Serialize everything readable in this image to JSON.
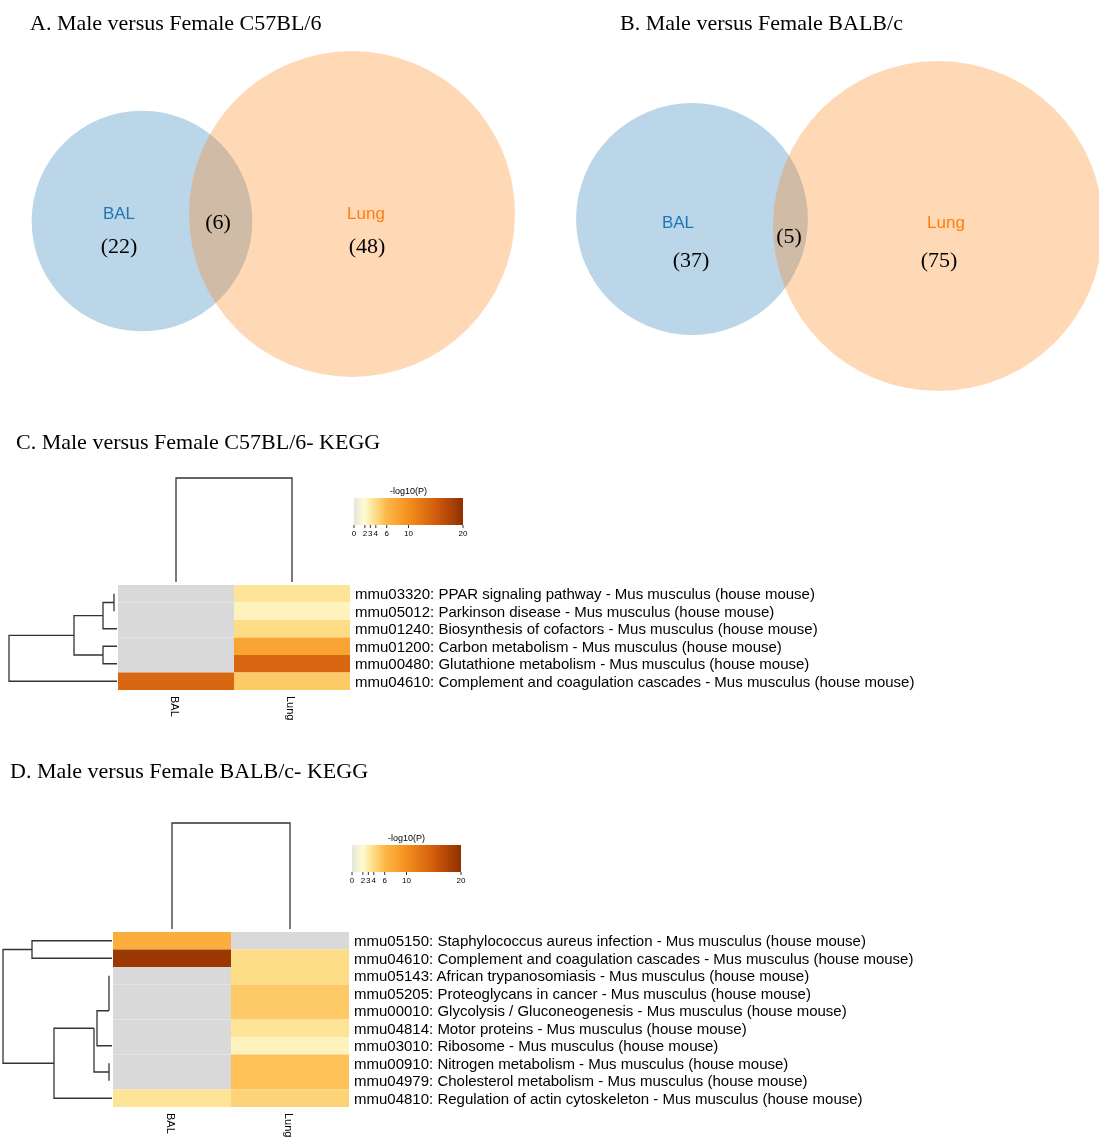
{
  "chart_data": [
    {
      "type": "other",
      "title": "A. Male versus Female C57BL/6",
      "categories": [
        "BAL",
        "Lung"
      ],
      "values": [
        22,
        48
      ],
      "value_labels": [
        "(22)",
        "(48)"
      ],
      "colors": [
        "#1f77b4",
        "#ff7f0e"
      ],
      "annotations": [
        "(6)"
      ]
    },
    {
      "type": "other",
      "title": "B. Male versus Female BALB/c",
      "categories": [
        "BAL",
        "Lung"
      ],
      "values": [
        37,
        75
      ],
      "value_labels": [
        "(37)",
        "(75)"
      ],
      "colors": [
        "#1f77b4",
        "#ff7f0e"
      ],
      "annotations": [
        "(5)"
      ]
    },
    {
      "type": "heatmap",
      "title": "C. Male versus Female C57BL/6- KEGG",
      "categories": [
        "BAL",
        "Lung"
      ],
      "clabel": "-log10(P)",
      "clim": [
        0,
        20
      ],
      "cticks": [
        0,
        2,
        3,
        4,
        6,
        10,
        20
      ],
      "y_categories": [
        "mmu03320: PPAR signaling pathway - Mus musculus (house mouse)",
        "mmu05012: Parkinson disease - Mus musculus (house mouse)",
        "mmu01240: Biosynthesis of cofactors - Mus musculus (house mouse)",
        "mmu01200: Carbon metabolism - Mus musculus (house mouse)",
        "mmu00480: Glutathione metabolism - Mus musculus (house mouse)",
        "mmu04610: Complement and coagulation cascades - Mus musculus (house mouse)"
      ],
      "cells": [
        [
          null,
          3.5
        ],
        [
          null,
          2.5
        ],
        [
          null,
          4
        ],
        [
          null,
          8
        ],
        [
          null,
          14
        ],
        [
          14,
          5
        ]
      ]
    },
    {
      "type": "heatmap",
      "title": "D. Male versus Female BALB/c- KEGG",
      "categories": [
        "BAL",
        "Lung"
      ],
      "clabel": "-log10(P)",
      "clim": [
        0,
        20
      ],
      "cticks": [
        0,
        2,
        3,
        4,
        6,
        10,
        20
      ],
      "y_categories": [
        "mmu05150: Staphylococcus aureus infection - Mus musculus (house mouse)",
        "mmu04610: Complement and coagulation cascades - Mus musculus (house mouse)",
        "mmu05143: African trypanosomiasis - Mus musculus (house mouse)",
        "mmu05205: Proteoglycans in cancer - Mus musculus (house mouse)",
        "mmu00010: Glycolysis / Gluconeogenesis - Mus musculus (house mouse)",
        "mmu04814: Motor proteins - Mus musculus (house mouse)",
        "mmu03010: Ribosome - Mus musculus (house mouse)",
        "mmu00910: Nitrogen metabolism - Mus musculus (house mouse)",
        "mmu04979: Cholesterol metabolism - Mus musculus (house mouse)",
        "mmu04810: Regulation of actin cytoskeleton - Mus musculus (house mouse)"
      ],
      "cells": [
        [
          7,
          null
        ],
        [
          19,
          4
        ],
        [
          null,
          4
        ],
        [
          null,
          5
        ],
        [
          null,
          5
        ],
        [
          null,
          3.5
        ],
        [
          null,
          2.5
        ],
        [
          null,
          5.5
        ],
        [
          null,
          5.5
        ],
        [
          3.5,
          4.5
        ]
      ]
    }
  ]
}
